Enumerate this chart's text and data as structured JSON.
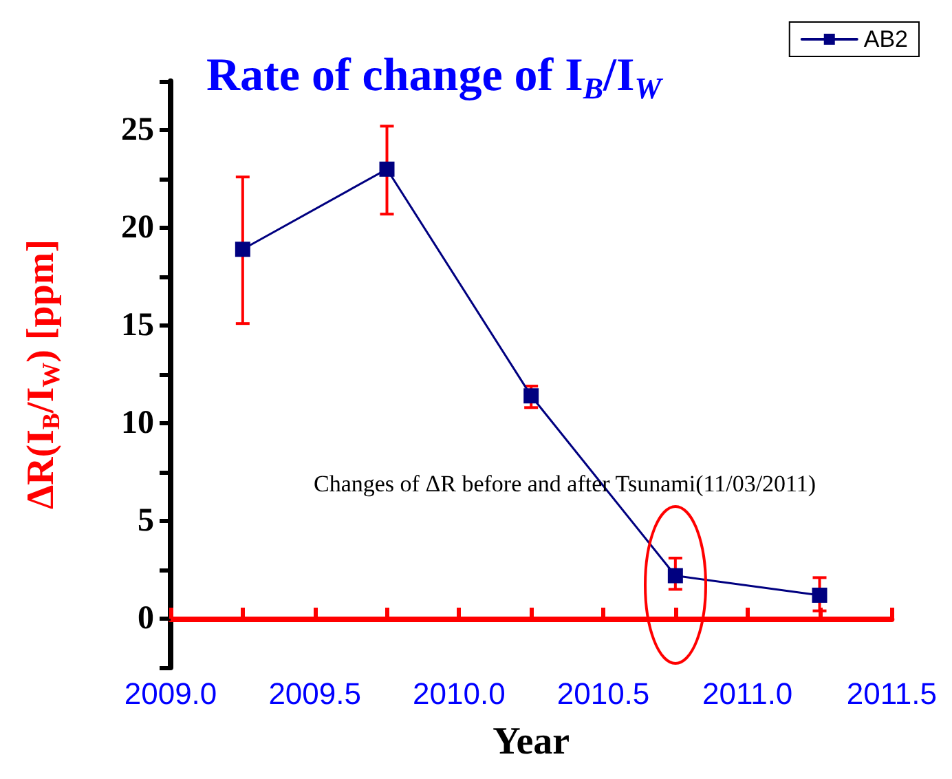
{
  "chart_data": {
    "type": "line",
    "title": "Rate of change of I$_{B}$/I$_{W}$",
    "xlabel": "Year",
    "ylabel": "ΔR(I$_{B}$/I$_{W}$) [ppm]",
    "x": [
      2009.25,
      2009.75,
      2010.25,
      2010.75,
      2011.25
    ],
    "series": [
      {
        "name": "AB2",
        "color": "#000080",
        "values": [
          18.9,
          23.0,
          11.4,
          2.2,
          1.2
        ],
        "errors": [
          [
            15.1,
            22.6
          ],
          [
            20.7,
            25.2
          ],
          [
            10.8,
            11.9
          ],
          [
            1.5,
            3.1
          ],
          [
            0.4,
            2.1
          ]
        ]
      }
    ],
    "xlim": [
      2009.0,
      2011.5
    ],
    "xticks": [
      {
        "value": 2009.0,
        "label": "2009.0"
      },
      {
        "value": 2009.25,
        "label": null
      },
      {
        "value": 2009.5,
        "label": "2009.5"
      },
      {
        "value": 2009.75,
        "label": null
      },
      {
        "value": 2010.0,
        "label": "2010.0"
      },
      {
        "value": 2010.25,
        "label": null
      },
      {
        "value": 2010.5,
        "label": "2010.5"
      },
      {
        "value": 2010.75,
        "label": null
      },
      {
        "value": 2011.0,
        "label": "2011.0"
      },
      {
        "value": 2011.25,
        "label": null
      },
      {
        "value": 2011.5,
        "label": "2011.5"
      }
    ],
    "ylim": [
      -2.5,
      27.5
    ],
    "yticks": [
      {
        "value": -2.5,
        "label": null
      },
      0,
      {
        "value": 2.5,
        "label": null
      },
      5,
      {
        "value": 7.5,
        "label": null
      },
      10,
      {
        "value": 12.5,
        "label": null
      },
      15,
      {
        "value": 17.5,
        "label": null
      },
      20,
      {
        "value": 22.5,
        "label": null
      },
      25,
      {
        "value": 27.5,
        "label": null
      }
    ],
    "annotations": [
      "Changes of ΔR before and after Tsunami(11/03/2011)"
    ],
    "legend": "top right",
    "marker": "square",
    "line_style": "solid",
    "grid": false
  }
}
